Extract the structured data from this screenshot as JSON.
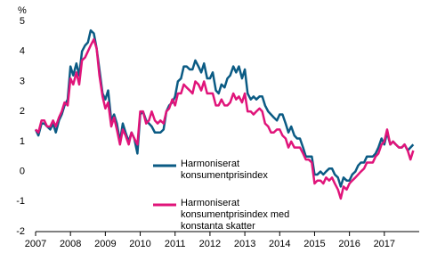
{
  "chart_data": {
    "type": "line",
    "ylabel": "%",
    "x": [
      2007.0,
      2007.08,
      2007.17,
      2007.25,
      2007.33,
      2007.42,
      2007.5,
      2007.58,
      2007.67,
      2007.75,
      2007.83,
      2007.92,
      2008.0,
      2008.08,
      2008.17,
      2008.25,
      2008.33,
      2008.42,
      2008.5,
      2008.58,
      2008.67,
      2008.75,
      2008.83,
      2008.92,
      2009.0,
      2009.08,
      2009.17,
      2009.25,
      2009.33,
      2009.42,
      2009.5,
      2009.58,
      2009.67,
      2009.75,
      2009.83,
      2009.92,
      2010.0,
      2010.08,
      2010.17,
      2010.25,
      2010.33,
      2010.42,
      2010.5,
      2010.58,
      2010.67,
      2010.75,
      2010.83,
      2010.92,
      2011.0,
      2011.08,
      2011.17,
      2011.25,
      2011.33,
      2011.42,
      2011.5,
      2011.58,
      2011.67,
      2011.75,
      2011.83,
      2011.92,
      2012.0,
      2012.08,
      2012.17,
      2012.25,
      2012.33,
      2012.42,
      2012.5,
      2012.58,
      2012.67,
      2012.75,
      2012.83,
      2012.92,
      2013.0,
      2013.08,
      2013.17,
      2013.25,
      2013.33,
      2013.42,
      2013.5,
      2013.58,
      2013.67,
      2013.75,
      2013.83,
      2013.92,
      2014.0,
      2014.08,
      2014.17,
      2014.25,
      2014.33,
      2014.42,
      2014.5,
      2014.58,
      2014.67,
      2014.75,
      2014.83,
      2014.92,
      2015.0,
      2015.08,
      2015.17,
      2015.25,
      2015.33,
      2015.42,
      2015.5,
      2015.58,
      2015.67,
      2015.75,
      2015.83,
      2015.92,
      2016.0,
      2016.08,
      2016.17,
      2016.25,
      2016.33,
      2016.42,
      2016.5,
      2016.58,
      2016.67,
      2016.75,
      2016.83,
      2016.92,
      2017.0,
      2017.08,
      2017.17,
      2017.25,
      2017.33,
      2017.42,
      2017.5,
      2017.58,
      2017.67,
      2017.75,
      2017.83
    ],
    "series": [
      {
        "name": "Harmoniserat konsumentprisindex",
        "color": "#0b5b84",
        "values": [
          1.4,
          1.2,
          1.6,
          1.6,
          1.5,
          1.4,
          1.6,
          1.3,
          1.7,
          1.9,
          2.2,
          2.4,
          3.5,
          3.2,
          3.6,
          3.2,
          4.0,
          4.2,
          4.3,
          4.7,
          4.6,
          4.1,
          3.4,
          2.6,
          2.4,
          2.7,
          1.7,
          1.9,
          1.6,
          1.0,
          1.6,
          1.3,
          1.0,
          1.3,
          1.1,
          0.6,
          1.9,
          2.0,
          1.7,
          1.6,
          1.5,
          1.3,
          1.3,
          1.3,
          1.4,
          2.0,
          2.2,
          2.3,
          2.5,
          3.0,
          3.1,
          3.5,
          3.5,
          3.4,
          3.4,
          3.7,
          3.5,
          3.3,
          3.6,
          3.1,
          3.1,
          3.3,
          2.7,
          2.6,
          2.9,
          2.8,
          3.1,
          3.2,
          3.5,
          3.3,
          3.5,
          3.1,
          3.4,
          2.6,
          2.4,
          2.5,
          2.4,
          2.5,
          2.5,
          2.2,
          2.0,
          1.9,
          1.8,
          1.7,
          1.9,
          1.9,
          1.6,
          1.3,
          1.5,
          1.2,
          1.1,
          1.1,
          0.8,
          0.5,
          0.5,
          0.5,
          -0.1,
          -0.1,
          0.0,
          -0.1,
          0.0,
          0.1,
          0.1,
          -0.1,
          -0.2,
          -0.5,
          -0.2,
          -0.3,
          -0.3,
          -0.1,
          0.0,
          0.2,
          0.3,
          0.3,
          0.5,
          0.5,
          0.5,
          0.6,
          0.8,
          1.1,
          0.9,
          1.3,
          0.9,
          1.0,
          0.9,
          0.8,
          0.8,
          0.9,
          0.7,
          0.8,
          0.9
        ]
      },
      {
        "name": "Harmoniserat konsumentprisindex med konstanta skatter",
        "color": "#e0147a",
        "values": [
          1.4,
          1.3,
          1.7,
          1.7,
          1.5,
          1.5,
          1.7,
          1.5,
          1.8,
          2.0,
          2.3,
          2.2,
          3.1,
          2.9,
          3.3,
          2.9,
          3.7,
          3.8,
          4.0,
          4.2,
          4.4,
          4.1,
          3.2,
          2.5,
          2.1,
          2.3,
          1.5,
          1.8,
          1.4,
          0.9,
          1.4,
          1.2,
          0.9,
          1.3,
          1.1,
          0.9,
          2.0,
          2.0,
          1.6,
          1.7,
          2.0,
          1.7,
          1.6,
          1.7,
          1.6,
          2.0,
          2.1,
          2.4,
          2.2,
          2.6,
          2.6,
          2.9,
          2.8,
          2.7,
          2.6,
          3.0,
          2.9,
          2.7,
          3.0,
          2.6,
          2.6,
          2.6,
          2.2,
          2.2,
          2.4,
          2.2,
          2.2,
          2.3,
          2.6,
          2.4,
          2.5,
          2.3,
          2.6,
          2.0,
          2.0,
          1.9,
          2.0,
          2.1,
          2.0,
          1.6,
          1.5,
          1.3,
          1.3,
          1.4,
          1.4,
          1.2,
          1.1,
          0.8,
          1.0,
          0.8,
          0.8,
          0.8,
          0.6,
          0.4,
          0.4,
          0.3,
          -0.4,
          -0.3,
          -0.3,
          -0.4,
          -0.2,
          -0.3,
          -0.2,
          -0.4,
          -0.6,
          -0.9,
          -0.5,
          -0.6,
          -0.4,
          -0.3,
          -0.2,
          -0.1,
          0.0,
          0.1,
          0.3,
          0.3,
          0.3,
          0.5,
          0.6,
          0.9,
          1.0,
          1.4,
          0.9,
          1.0,
          0.9,
          0.8,
          0.8,
          0.9,
          0.7,
          0.4,
          0.7
        ]
      }
    ],
    "xlim": [
      2007,
      2018
    ],
    "xticks": [
      2007,
      2008,
      2009,
      2010,
      2011,
      2012,
      2013,
      2014,
      2015,
      2016,
      2017
    ],
    "ylim": [
      -2,
      5
    ],
    "yticks": [
      -2,
      -1,
      0,
      1,
      2,
      3,
      4,
      5
    ],
    "grid": false
  }
}
